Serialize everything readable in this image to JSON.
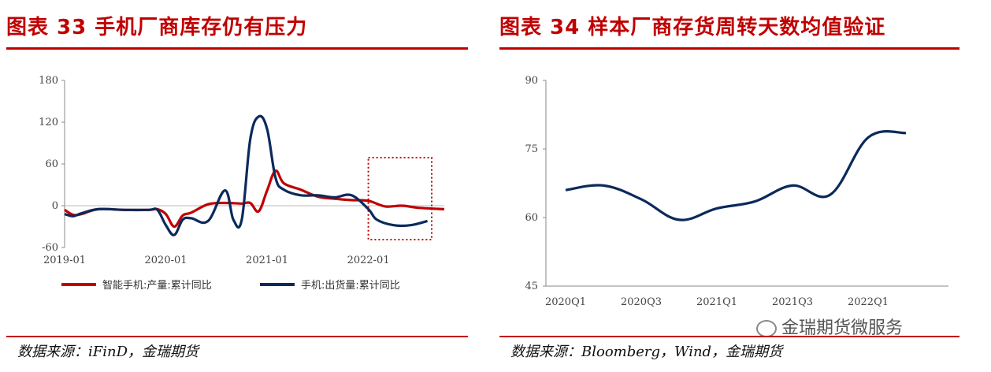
{
  "watermark": "金瑞期货微服务",
  "panels": [
    {
      "title": "图表 33 手机厂商库存仍有压力",
      "source": "数据来源：iFinD，金瑞期货"
    },
    {
      "title": "图表 34 样本厂商存货周转天数均值验证",
      "source": "数据来源：Bloomberg，Wind，金瑞期货"
    }
  ],
  "chart_data": [
    {
      "type": "line",
      "title": "",
      "xlabel": "",
      "ylabel": "",
      "x_ticks": [
        "2019-01",
        "2020-01",
        "2021-01",
        "2022-01"
      ],
      "y_ticks": [
        180,
        120,
        60,
        0,
        -60
      ],
      "ylim": [
        -60,
        180
      ],
      "xlim": [
        "2019-01",
        "2022-10"
      ],
      "grid": false,
      "legend": "bottom",
      "annotation": "dotted red box highlighting 2022-01 to 2022-09",
      "series": [
        {
          "name": "智能手机:产量:累计同比",
          "color": "#c00000",
          "x": [
            "2019-01",
            "2019-02",
            "2019-03",
            "2019-05",
            "2019-08",
            "2019-11",
            "2019-12",
            "2020-01",
            "2020-02",
            "2020-03",
            "2020-04",
            "2020-06",
            "2020-08",
            "2020-10",
            "2020-11",
            "2020-12",
            "2021-01",
            "2021-02",
            "2021-03",
            "2021-05",
            "2021-07",
            "2021-09",
            "2021-11",
            "2022-01",
            "2022-03",
            "2022-05",
            "2022-07",
            "2022-10"
          ],
          "values": [
            -6,
            -13,
            -12,
            -5,
            -6,
            -6,
            -5,
            -12,
            -30,
            -14,
            -10,
            2,
            4,
            3,
            4,
            -8,
            22,
            50,
            32,
            23,
            13,
            10,
            8,
            7,
            -1,
            0,
            -3,
            -5
          ]
        },
        {
          "name": "手机:出货量:累计同比",
          "color": "#0b2a5b",
          "x": [
            "2019-01",
            "2019-02",
            "2019-03",
            "2019-05",
            "2019-08",
            "2019-11",
            "2019-12",
            "2020-01",
            "2020-02",
            "2020-03",
            "2020-04",
            "2020-06",
            "2020-08",
            "2020-09",
            "2020-10",
            "2020-11",
            "2020-12",
            "2021-01",
            "2021-02",
            "2021-03",
            "2021-05",
            "2021-07",
            "2021-09",
            "2021-11",
            "2022-01",
            "2022-02",
            "2022-04",
            "2022-06",
            "2022-08"
          ],
          "values": [
            -12,
            -15,
            -11,
            -5,
            -6,
            -6,
            -6,
            -28,
            -42,
            -20,
            -18,
            -22,
            22,
            -20,
            -20,
            95,
            128,
            110,
            40,
            23,
            15,
            15,
            12,
            15,
            -5,
            -20,
            -28,
            -28,
            -22
          ]
        }
      ]
    },
    {
      "type": "line",
      "title": "",
      "xlabel": "",
      "ylabel": "",
      "x_ticks": [
        "2020Q1",
        "2020Q3",
        "2021Q1",
        "2021Q3",
        "2022Q1"
      ],
      "y_ticks": [
        90,
        75,
        60,
        45
      ],
      "ylim": [
        45,
        90
      ],
      "grid": false,
      "series": [
        {
          "name": "",
          "color": "#0b2a5b",
          "x": [
            "2020Q1",
            "2020Q2",
            "2020Q3",
            "2020Q4",
            "2021Q1",
            "2021Q2",
            "2021Q3",
            "2021Q4",
            "2022Q1",
            "2022Q2"
          ],
          "values": [
            66,
            67,
            64,
            59.5,
            62,
            63.5,
            67,
            65,
            77.5,
            78.5
          ]
        }
      ]
    }
  ]
}
